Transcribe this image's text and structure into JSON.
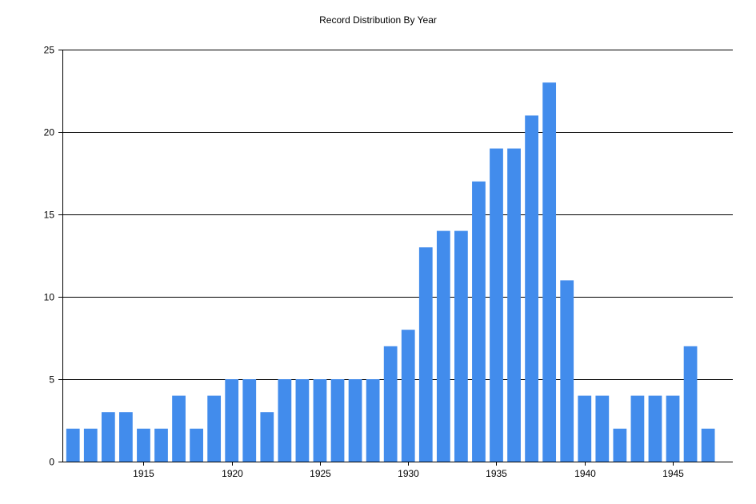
{
  "chart_data": {
    "type": "bar",
    "title": "Record Distribution By Year",
    "xlabel": "",
    "ylabel": "",
    "x": [
      1911,
      1912,
      1913,
      1914,
      1915,
      1916,
      1917,
      1918,
      1919,
      1920,
      1921,
      1922,
      1923,
      1924,
      1925,
      1926,
      1927,
      1928,
      1929,
      1930,
      1931,
      1932,
      1933,
      1934,
      1935,
      1936,
      1937,
      1938,
      1939,
      1940,
      1941,
      1942,
      1943,
      1944,
      1945,
      1946,
      1947
    ],
    "values": [
      2,
      2,
      3,
      3,
      2,
      2,
      4,
      2,
      4,
      5,
      5,
      3,
      5,
      5,
      5,
      5,
      5,
      5,
      7,
      8,
      13,
      14,
      14,
      17,
      19,
      19,
      21,
      23,
      11,
      4,
      4,
      2,
      4,
      4,
      4,
      7,
      2
    ],
    "ylim": [
      0,
      25
    ],
    "yticks": [
      0,
      5,
      10,
      15,
      20,
      25
    ],
    "xticks": [
      1915,
      1920,
      1925,
      1930,
      1935,
      1940,
      1945
    ],
    "grid": "horizontal",
    "legend": "none",
    "colors": {
      "bar": "#428cec",
      "axis": "#000000",
      "grid": "#000000"
    }
  }
}
